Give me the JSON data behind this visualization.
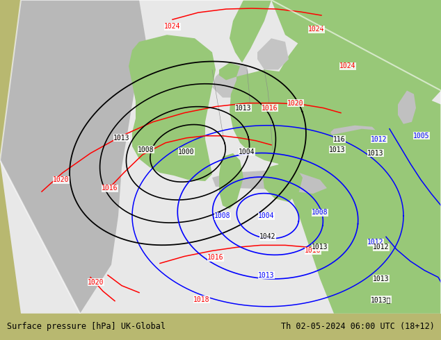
{
  "title_left": "Surface pressure [hPa] UK-Global",
  "title_right": "Th 02-05-2024 06:00 UTC (18+12)",
  "bg_color": "#b8b870",
  "forecast_area_color": "#e8e8e8",
  "ocean_color": "#c0c0c0",
  "land_green_color": "#98c878",
  "land_tan_color": "#c8c888",
  "fig_width": 6.34,
  "fig_height": 4.9,
  "dpi": 100,
  "bottom_bar_color": "#c8c8c8",
  "bottom_bar_height": 0.078,
  "font_size_title": 8.5,
  "font_family": "monospace"
}
